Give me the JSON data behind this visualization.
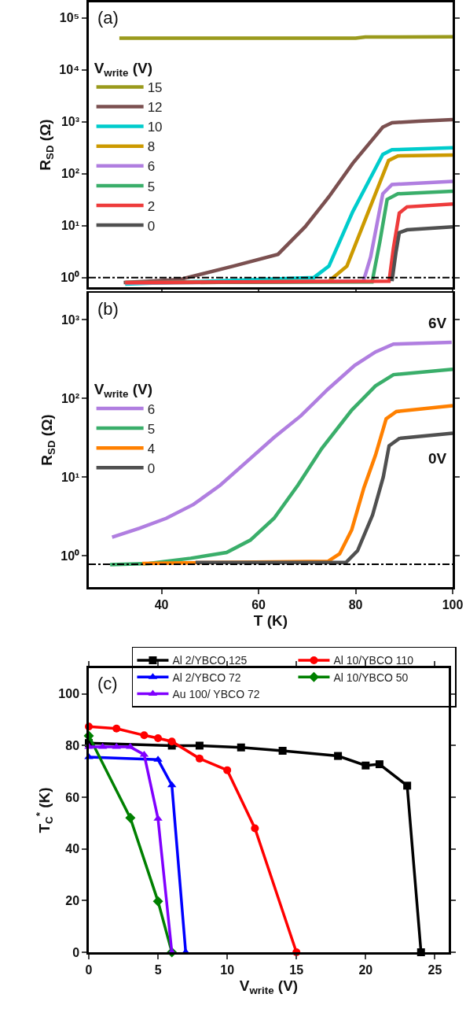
{
  "chart_data": [
    {
      "type": "line",
      "ylabel": "R$_{SD}$ (Ω)",
      "legend_title": "V$_{write}$ (V)",
      "annotations": [
        "(a)"
      ],
      "log": "y",
      "grid": false,
      "legend": "left",
      "tick_labels": "y",
      "xlim": [
        25,
        100
      ],
      "xticks": [
        40,
        60,
        80,
        100
      ],
      "ylim": [
        0.65,
        200000
      ],
      "yticks": [
        {
          "value": 1,
          "label": "10⁰"
        },
        {
          "value": 10,
          "label": "10¹"
        },
        {
          "value": 100,
          "label": "10²"
        },
        {
          "value": 1000,
          "label": "10³"
        },
        {
          "value": 10000,
          "label": "10⁴"
        },
        {
          "value": 100000,
          "label": "10⁵"
        }
      ],
      "ref_lines": [
        {
          "axis": "y",
          "value": 1,
          "color": "#000000",
          "line_style": "dashed"
        }
      ],
      "series": [
        {
          "name": "15",
          "color": "#9a9a1c",
          "x": [
            31.3,
            80,
            82,
            100
          ],
          "values": [
            41000,
            41000,
            43000,
            43500
          ]
        },
        {
          "name": "12",
          "color": "#7b5050",
          "x": [
            32.2,
            43.6,
            54.8,
            64,
            69.6,
            74.5,
            79.4,
            85.6,
            87.5,
            93,
            100
          ],
          "values": [
            0.8,
            0.91,
            1.66,
            2.8,
            9.5,
            36,
            158,
            790,
            960,
            1030,
            1100
          ]
        },
        {
          "name": "10",
          "color": "#00cccc",
          "x": [
            32.5,
            71.4,
            74.5,
            79.4,
            85.6,
            87.5,
            100
          ],
          "values": [
            0.75,
            1.0,
            1.66,
            18.5,
            236,
            290,
            316
          ]
        },
        {
          "name": "8",
          "color": "#cc9a00",
          "x": [
            32.5,
            74.5,
            78.2,
            83.1,
            86.8,
            88.7,
            100
          ],
          "values": [
            0.78,
            0.85,
            1.66,
            24,
            180,
            220,
            230
          ]
        },
        {
          "name": "6",
          "color": "#b07ee0",
          "x": [
            32.5,
            81.6,
            83.1,
            85.6,
            87.5,
            100
          ],
          "values": [
            0.78,
            0.85,
            2.5,
            41,
            62,
            71
          ]
        },
        {
          "name": "5",
          "color": "#3aae6a",
          "x": [
            32.5,
            83.4,
            85,
            86.5,
            88.7,
            100
          ],
          "values": [
            0.8,
            0.82,
            4.9,
            32,
            41,
            46
          ]
        },
        {
          "name": "2",
          "color": "#ee3b3b",
          "x": [
            32.5,
            86.9,
            87.8,
            89,
            90.6,
            100
          ],
          "values": [
            0.8,
            0.85,
            3.7,
            17.4,
            23,
            26
          ]
        },
        {
          "name": "0",
          "color": "#505050",
          "x": [
            87.5,
            88.3,
            89,
            90.6,
            100
          ],
          "values": [
            0.85,
            3,
            7.3,
            8.3,
            9.5
          ]
        }
      ]
    },
    {
      "type": "line",
      "xlabel": "T (K)",
      "ylabel": "R$_{SD}$ (Ω)",
      "legend_title": "V$_{write}$ (V)",
      "annotations": [
        "(b)",
        "6V",
        "0V"
      ],
      "log": "y",
      "grid": false,
      "legend": "left",
      "xlim": [
        25,
        100
      ],
      "xticks": [
        40,
        60,
        80,
        100
      ],
      "ylim": [
        0.4,
        2200
      ],
      "yticks": [
        {
          "value": 1,
          "label": "10⁰"
        },
        {
          "value": 10,
          "label": "10¹"
        },
        {
          "value": 100,
          "label": "10²"
        },
        {
          "value": 1000,
          "label": "10³"
        }
      ],
      "ref_lines": [
        {
          "axis": "y",
          "value": 0.78,
          "color": "#000000",
          "line_style": "dashed"
        }
      ],
      "series": [
        {
          "name": "6",
          "color": "#b07ee0",
          "x": [
            29.8,
            35.5,
            41,
            46.6,
            52.1,
            57.7,
            63.2,
            68.7,
            74.3,
            79.8,
            84.1,
            87.8,
            99.8
          ],
          "values": [
            1.72,
            2.24,
            3.0,
            4.5,
            7.9,
            16,
            32,
            60,
            131,
            263,
            390,
            490,
            515
          ]
        },
        {
          "name": "5",
          "color": "#3aae6a",
          "x": [
            29.4,
            37.4,
            46,
            53.4,
            58.3,
            63.2,
            68.1,
            73,
            79.2,
            84.1,
            87.8,
            100
          ],
          "values": [
            0.77,
            0.8,
            0.93,
            1.1,
            1.58,
            3.0,
            7.9,
            23,
            71,
            144,
            200,
            234
          ]
        },
        {
          "name": "4",
          "color": "#ff8000",
          "x": [
            36,
            74.3,
            76.7,
            79.2,
            81.7,
            84.1,
            86.3,
            88.4,
            100
          ],
          "values": [
            0.8,
            0.85,
            1.06,
            2.14,
            7.3,
            19,
            55,
            68,
            81
          ]
        },
        {
          "name": "0",
          "color": "#505050",
          "x": [
            47,
            78,
            80.4,
            83.5,
            85.7,
            86.9,
            89,
            100
          ],
          "values": [
            0.82,
            0.82,
            1.16,
            3.3,
            10,
            25,
            31,
            36
          ]
        }
      ]
    },
    {
      "type": "line",
      "xlabel": "V$_{write}$ (V)",
      "ylabel": "T$_{C}$$^{*}$ (K)",
      "annotations": [
        "(c)"
      ],
      "grid": false,
      "legend": "top",
      "xlim": [
        0,
        26
      ],
      "xticks": [
        0,
        5,
        10,
        15,
        20,
        25
      ],
      "ylim": [
        0,
        110
      ],
      "yticks": [
        0,
        20,
        40,
        60,
        80,
        100
      ],
      "series": [
        {
          "name": "Al 2/YBCO 125",
          "color": "#000000",
          "marker": "square",
          "x": [
            0,
            6,
            8,
            11,
            14,
            18,
            20,
            21,
            23,
            24
          ],
          "values": [
            81,
            80,
            80,
            79.3,
            78,
            76,
            72.3,
            72.8,
            64.5,
            0
          ]
        },
        {
          "name": "Al 10/YBCO 110",
          "color": "#ff0000",
          "marker": "circle",
          "x": [
            0,
            2,
            4,
            5,
            6,
            8,
            10,
            12,
            15
          ],
          "values": [
            87.4,
            86.6,
            84,
            82.9,
            81.6,
            75,
            70.5,
            48,
            0
          ]
        },
        {
          "name": "Al 2/YBCO 72",
          "color": "#0000ff",
          "marker": "triangle",
          "x": [
            0,
            5,
            6,
            7
          ],
          "values": [
            75.6,
            74.6,
            64.7,
            0
          ]
        },
        {
          "name": "Al 10/YBCO 50",
          "color": "#008000",
          "marker": "diamond",
          "x": [
            0,
            3,
            5,
            6
          ],
          "values": [
            83.8,
            52,
            19.7,
            0
          ]
        },
        {
          "name": "Au 100/ YBCO 72",
          "color": "#8000ff",
          "marker": "triangle",
          "x": [
            0,
            1,
            2,
            3,
            4,
            5,
            6
          ],
          "values": [
            79.5,
            79.5,
            79.5,
            79.5,
            76.5,
            51.7,
            0
          ]
        }
      ]
    }
  ]
}
